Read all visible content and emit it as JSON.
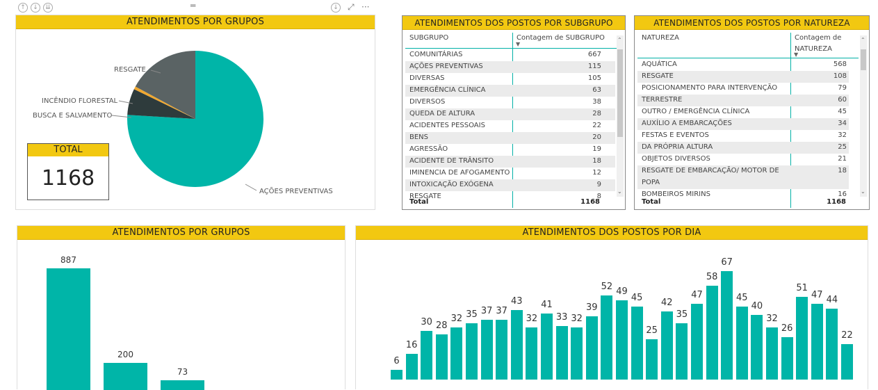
{
  "toolbar": {
    "icons": [
      "arrow-up-icon",
      "drill-mode-icon",
      "drill-all-icon",
      "drag-handle-icon",
      "download-icon",
      "focus-mode-icon",
      "more-options-icon"
    ]
  },
  "pie_panel": {
    "title": "ATENDIMENTOS POR GRUPOS",
    "total_label": "TOTAL",
    "total_value": "1168",
    "labels": {
      "resgate": "RESGATE",
      "incendio": "INCÊNDIO FLORESTAL",
      "busca": "BUSCA E SALVAMENTO",
      "acoes": "AÇÕES PREVENTIVAS"
    },
    "colors": {
      "acoes": "#00b5a8",
      "busca": "#2e3b3c",
      "incendio": "#f0a830",
      "resgate": "#5a6364"
    }
  },
  "subgrupo_table": {
    "title": "ATENDIMENTOS DOS POSTOS POR SUBGRUPO",
    "col1": "SUBGRUPO",
    "col2": "Contagem de SUBGRUPO",
    "rows": [
      {
        "name": "COMUNITÁRIAS",
        "value": "667"
      },
      {
        "name": "AÇÕES PREVENTIVAS",
        "value": "115"
      },
      {
        "name": "DIVERSAS",
        "value": "105"
      },
      {
        "name": "EMERGÊNCIA CLÍNICA",
        "value": "63"
      },
      {
        "name": "DIVERSOS",
        "value": "38"
      },
      {
        "name": "QUEDA DE ALTURA",
        "value": "28"
      },
      {
        "name": "ACIDENTES PESSOAIS",
        "value": "22"
      },
      {
        "name": "BENS",
        "value": "20"
      },
      {
        "name": "AGRESSÃO",
        "value": "19"
      },
      {
        "name": "ACIDENTE DE TRÂNSITO",
        "value": "18"
      },
      {
        "name": "IMINENCIA DE AFOGAMENTO",
        "value": "12"
      },
      {
        "name": "INTOXICAÇÃO EXÓGENA",
        "value": "9"
      },
      {
        "name": "RESGATE",
        "value": "8"
      }
    ],
    "total_label": "Total",
    "total_value": "1168"
  },
  "natureza_table": {
    "title": "ATENDIMENTOS DOS POSTOS POR NATUREZA",
    "col1": "NATUREZA",
    "col2_line1": "Contagem de",
    "col2_line2": "NATUREZA",
    "rows": [
      {
        "name": "AQUÁTICA",
        "value": "568"
      },
      {
        "name": "RESGATE",
        "value": "108"
      },
      {
        "name": "POSICIONAMENTO PARA INTERVENÇÃO",
        "value": "79"
      },
      {
        "name": "TERRESTRE",
        "value": "60"
      },
      {
        "name": "OUTRO / EMERGÊNCIA CLÍNICA",
        "value": "45"
      },
      {
        "name": "AUXÍLIO A EMBARCAÇÕES",
        "value": "34"
      },
      {
        "name": "FESTAS E EVENTOS",
        "value": "32"
      },
      {
        "name": "DA PRÓPRIA ALTURA",
        "value": "25"
      },
      {
        "name": "OBJETOS DIVERSOS",
        "value": "21"
      },
      {
        "name": "RESGATE DE EMBARCAÇÃO/ MOTOR DE",
        "name2": "POPA",
        "value": "18"
      },
      {
        "name": "BOMBEIROS MIRINS",
        "value": "16"
      }
    ],
    "total_label": "Total",
    "total_value": "1168"
  },
  "bar_panel": {
    "title": "ATENDIMENTOS POR GRUPOS"
  },
  "day_panel": {
    "title": "ATENDIMENTOS DOS POSTOS POR DIA"
  },
  "chart_data": [
    {
      "type": "pie",
      "title": "ATENDIMENTOS POR GRUPOS",
      "categories": [
        "AÇÕES PREVENTIVAS",
        "BUSCA E SALVAMENTO",
        "INCÊNDIO FLORESTAL",
        "RESGATE"
      ],
      "values": [
        887,
        73,
        8,
        200
      ],
      "total": 1168
    },
    {
      "type": "bar",
      "title": "ATENDIMENTOS POR GRUPOS",
      "values": [
        887,
        200,
        73
      ],
      "ylim": [
        0,
        1000
      ]
    },
    {
      "type": "bar",
      "title": "ATENDIMENTOS DOS POSTOS POR DIA",
      "values": [
        6,
        16,
        30,
        28,
        32,
        35,
        37,
        37,
        43,
        32,
        41,
        33,
        32,
        39,
        52,
        49,
        45,
        25,
        42,
        35,
        47,
        58,
        67,
        45,
        40,
        32,
        26,
        51,
        47,
        44,
        22
      ],
      "ylim": [
        0,
        75
      ]
    }
  ]
}
